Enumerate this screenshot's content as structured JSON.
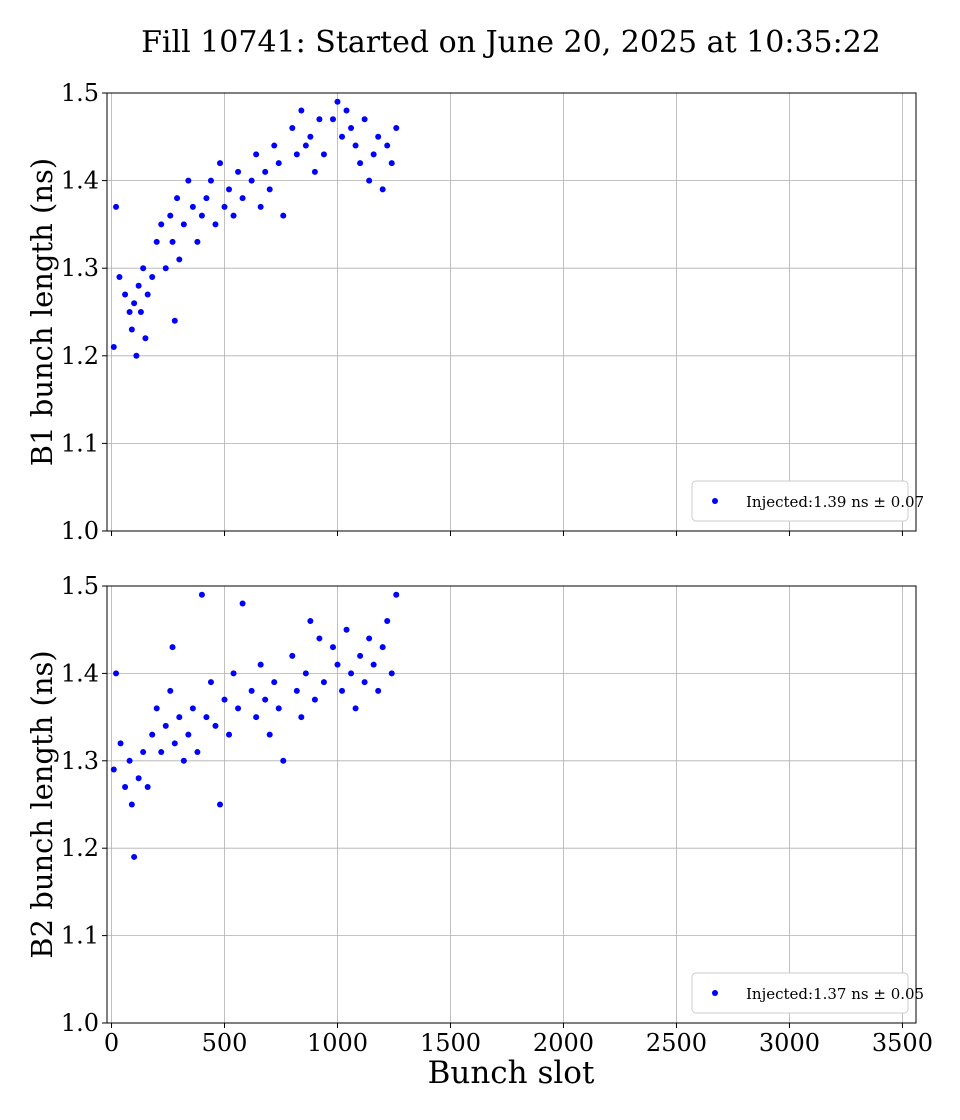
{
  "figure": {
    "suptitle": "Fill 10741: Started on June 20, 2025 at 10:35:22",
    "xlabel": "Bunch slot"
  },
  "colors": {
    "points": "#0000ff",
    "grid": "#b0b0b0",
    "axes": "#000000"
  },
  "chart_data": [
    {
      "type": "scatter",
      "title": "",
      "xlabel": "Bunch slot",
      "ylabel": "B1 bunch length (ns)",
      "xlim": [
        -20,
        3560
      ],
      "ylim": [
        1.0,
        1.5
      ],
      "xticks": [
        0,
        500,
        1000,
        1500,
        2000,
        2500,
        3000,
        3500
      ],
      "yticks": [
        1.0,
        1.1,
        1.2,
        1.3,
        1.4,
        1.5
      ],
      "grid": true,
      "legend_position": "lower-right",
      "legend_label": "Injected:1.39 ns ± 0.07",
      "series": [
        {
          "name": "Injected:1.39 ns ± 0.07",
          "points": [
            [
              10,
              1.21
            ],
            [
              20,
              1.37
            ],
            [
              35,
              1.29
            ],
            [
              60,
              1.27
            ],
            [
              80,
              1.25
            ],
            [
              90,
              1.23
            ],
            [
              100,
              1.26
            ],
            [
              110,
              1.2
            ],
            [
              120,
              1.28
            ],
            [
              130,
              1.25
            ],
            [
              140,
              1.3
            ],
            [
              150,
              1.22
            ],
            [
              160,
              1.27
            ],
            [
              180,
              1.29
            ],
            [
              200,
              1.33
            ],
            [
              220,
              1.35
            ],
            [
              240,
              1.3
            ],
            [
              260,
              1.36
            ],
            [
              270,
              1.33
            ],
            [
              280,
              1.24
            ],
            [
              290,
              1.38
            ],
            [
              300,
              1.31
            ],
            [
              320,
              1.35
            ],
            [
              340,
              1.4
            ],
            [
              360,
              1.37
            ],
            [
              380,
              1.33
            ],
            [
              400,
              1.36
            ],
            [
              420,
              1.38
            ],
            [
              440,
              1.4
            ],
            [
              460,
              1.35
            ],
            [
              480,
              1.42
            ],
            [
              500,
              1.37
            ],
            [
              520,
              1.39
            ],
            [
              540,
              1.36
            ],
            [
              560,
              1.41
            ],
            [
              580,
              1.38
            ],
            [
              620,
              1.4
            ],
            [
              640,
              1.43
            ],
            [
              660,
              1.37
            ],
            [
              680,
              1.41
            ],
            [
              700,
              1.39
            ],
            [
              720,
              1.44
            ],
            [
              740,
              1.42
            ],
            [
              760,
              1.36
            ],
            [
              800,
              1.46
            ],
            [
              820,
              1.43
            ],
            [
              840,
              1.48
            ],
            [
              860,
              1.44
            ],
            [
              880,
              1.45
            ],
            [
              900,
              1.41
            ],
            [
              920,
              1.47
            ],
            [
              940,
              1.43
            ],
            [
              980,
              1.47
            ],
            [
              1000,
              1.49
            ],
            [
              1020,
              1.45
            ],
            [
              1040,
              1.48
            ],
            [
              1060,
              1.46
            ],
            [
              1080,
              1.44
            ],
            [
              1100,
              1.42
            ],
            [
              1120,
              1.47
            ],
            [
              1140,
              1.4
            ],
            [
              1160,
              1.43
            ],
            [
              1180,
              1.45
            ],
            [
              1200,
              1.39
            ],
            [
              1220,
              1.44
            ],
            [
              1240,
              1.42
            ],
            [
              1260,
              1.46
            ]
          ]
        }
      ]
    },
    {
      "type": "scatter",
      "title": "",
      "xlabel": "Bunch slot",
      "ylabel": "B2 bunch length (ns)",
      "xlim": [
        -20,
        3560
      ],
      "ylim": [
        1.0,
        1.5
      ],
      "xticks": [
        0,
        500,
        1000,
        1500,
        2000,
        2500,
        3000,
        3500
      ],
      "yticks": [
        1.0,
        1.1,
        1.2,
        1.3,
        1.4,
        1.5
      ],
      "grid": true,
      "legend_position": "lower-right",
      "legend_label": "Injected:1.37 ns ± 0.05",
      "series": [
        {
          "name": "Injected:1.37 ns ± 0.05",
          "points": [
            [
              10,
              1.29
            ],
            [
              20,
              1.4
            ],
            [
              40,
              1.32
            ],
            [
              60,
              1.27
            ],
            [
              80,
              1.3
            ],
            [
              90,
              1.25
            ],
            [
              100,
              1.19
            ],
            [
              120,
              1.28
            ],
            [
              140,
              1.31
            ],
            [
              160,
              1.27
            ],
            [
              180,
              1.33
            ],
            [
              200,
              1.36
            ],
            [
              220,
              1.31
            ],
            [
              240,
              1.34
            ],
            [
              260,
              1.38
            ],
            [
              270,
              1.43
            ],
            [
              280,
              1.32
            ],
            [
              300,
              1.35
            ],
            [
              320,
              1.3
            ],
            [
              340,
              1.33
            ],
            [
              360,
              1.36
            ],
            [
              380,
              1.31
            ],
            [
              400,
              1.49
            ],
            [
              420,
              1.35
            ],
            [
              440,
              1.39
            ],
            [
              460,
              1.34
            ],
            [
              480,
              1.25
            ],
            [
              500,
              1.37
            ],
            [
              520,
              1.33
            ],
            [
              540,
              1.4
            ],
            [
              560,
              1.36
            ],
            [
              580,
              1.48
            ],
            [
              620,
              1.38
            ],
            [
              640,
              1.35
            ],
            [
              660,
              1.41
            ],
            [
              680,
              1.37
            ],
            [
              700,
              1.33
            ],
            [
              720,
              1.39
            ],
            [
              740,
              1.36
            ],
            [
              760,
              1.3
            ],
            [
              800,
              1.42
            ],
            [
              820,
              1.38
            ],
            [
              840,
              1.35
            ],
            [
              860,
              1.4
            ],
            [
              880,
              1.46
            ],
            [
              900,
              1.37
            ],
            [
              920,
              1.44
            ],
            [
              940,
              1.39
            ],
            [
              980,
              1.43
            ],
            [
              1000,
              1.41
            ],
            [
              1020,
              1.38
            ],
            [
              1040,
              1.45
            ],
            [
              1060,
              1.4
            ],
            [
              1080,
              1.36
            ],
            [
              1100,
              1.42
            ],
            [
              1120,
              1.39
            ],
            [
              1140,
              1.44
            ],
            [
              1160,
              1.41
            ],
            [
              1180,
              1.38
            ],
            [
              1200,
              1.43
            ],
            [
              1220,
              1.46
            ],
            [
              1240,
              1.4
            ],
            [
              1260,
              1.49
            ]
          ]
        }
      ]
    }
  ]
}
